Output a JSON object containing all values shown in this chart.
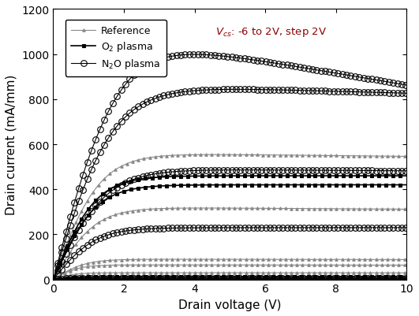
{
  "title": "",
  "xlabel": "Drain voltage (V)",
  "ylabel": "Drain current (mA/mm)",
  "annotation": "V$_{cs}$: -6 to 2V, step 2V",
  "xlim": [
    0,
    10
  ],
  "ylim": [
    0,
    1200
  ],
  "xticks": [
    0,
    2,
    4,
    6,
    8,
    10
  ],
  "yticks": [
    0,
    200,
    400,
    600,
    800,
    1000,
    1200
  ],
  "figsize": [
    5.31,
    4.02
  ],
  "dpi": 100,
  "bg_color": "#ffffff",
  "series": [
    {
      "label": "Reference",
      "color": "#888888",
      "marker": "^",
      "fillstyle": "full",
      "markersize": 2.5,
      "markevery": 8,
      "linewidth": 0.8,
      "curves": [
        {
          "ids_sat": 560,
          "vknee": 2.2,
          "droop": 0.003
        },
        {
          "ids_sat": 320,
          "vknee": 2.0,
          "droop": 0.003
        },
        {
          "ids_sat": 90,
          "vknee": 1.5,
          "droop": 0.002
        },
        {
          "ids_sat": 65,
          "vknee": 1.2,
          "droop": 0.002
        },
        {
          "ids_sat": 30,
          "vknee": 1.0,
          "droop": 0.001
        }
      ]
    },
    {
      "label": "O$_2$ plasma",
      "color": "#000000",
      "marker": "s",
      "fillstyle": "full",
      "markersize": 3.0,
      "markevery": 10,
      "linewidth": 1.2,
      "curves": [
        {
          "ids_sat": 460,
          "vknee": 2.0,
          "droop": 0.0
        },
        {
          "ids_sat": 420,
          "vknee": 2.0,
          "droop": 0.0
        },
        {
          "ids_sat": 12,
          "vknee": 1.0,
          "droop": 0.0
        },
        {
          "ids_sat": 5,
          "vknee": 0.8,
          "droop": 0.0
        },
        {
          "ids_sat": 2,
          "vknee": 0.5,
          "droop": 0.0
        }
      ]
    },
    {
      "label": "N$_2$O plasma",
      "color": "#000000",
      "marker": "o",
      "fillstyle": "none",
      "markersize": 5.5,
      "markevery": 6,
      "linewidth": 0.8,
      "curves": [
        {
          "ids_sat": 1065,
          "vknee": 3.0,
          "droop": 0.025
        },
        {
          "ids_sat": 860,
          "vknee": 2.8,
          "droop": 0.005
        },
        {
          "ids_sat": 490,
          "vknee": 2.5,
          "droop": 0.002
        },
        {
          "ids_sat": 230,
          "vknee": 2.0,
          "droop": 0.0
        },
        {
          "ids_sat": 5,
          "vknee": 0.5,
          "droop": 0.0
        }
      ]
    }
  ]
}
